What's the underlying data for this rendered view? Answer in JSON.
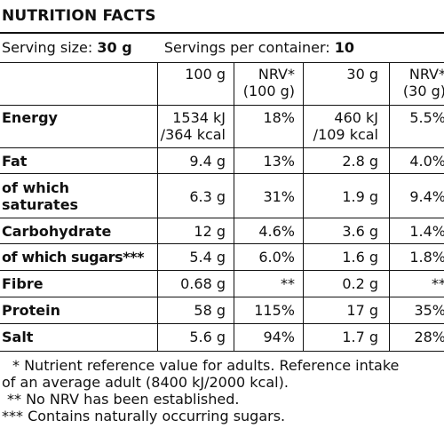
{
  "title": "NUTRITION FACTS",
  "serving": {
    "size_label": "Serving size:",
    "size_value": "30 g",
    "per_container_label": "Servings per container:",
    "per_container_value": "10"
  },
  "columns": {
    "per100": "100 g",
    "nrv100_line1": "NRV*",
    "nrv100_line2": "(100 g)",
    "per30": "30 g",
    "nrv30_line1": "NRV*",
    "nrv30_line2": "(30 g)"
  },
  "rows": [
    {
      "label_line1": "Energy",
      "label_line2": "",
      "v100_line1": "1534 kJ",
      "v100_line2": "/364 kcal",
      "nrv100": "18%",
      "v30_line1": "460 kJ",
      "v30_line2": "/109 kcal",
      "nrv30": "5.5%"
    },
    {
      "label_line1": "Fat",
      "label_line2": "",
      "v100_line1": "9.4 g",
      "v100_line2": "",
      "nrv100": "13%",
      "v30_line1": "2.8 g",
      "v30_line2": "",
      "nrv30": "4.0%"
    },
    {
      "label_line1": "of which",
      "label_line2": "saturates",
      "v100_line1": "6.3 g",
      "v100_line2": "",
      "nrv100": "31%",
      "v30_line1": "1.9 g",
      "v30_line2": "",
      "nrv30": "9.4%"
    },
    {
      "label_line1": "Carbohydrate",
      "label_line2": "",
      "v100_line1": "12 g",
      "v100_line2": "",
      "nrv100": "4.6%",
      "v30_line1": "3.6 g",
      "v30_line2": "",
      "nrv30": "1.4%"
    },
    {
      "label_line1": "of which sugars***",
      "label_line2": "",
      "v100_line1": "5.4 g",
      "v100_line2": "",
      "nrv100": "6.0%",
      "v30_line1": "1.6 g",
      "v30_line2": "",
      "nrv30": "1.8%"
    },
    {
      "label_line1": "Fibre",
      "label_line2": "",
      "v100_line1": "0.68 g",
      "v100_line2": "",
      "nrv100": "**",
      "v30_line1": "0.2 g",
      "v30_line2": "",
      "nrv30": "**"
    },
    {
      "label_line1": "Protein",
      "label_line2": "",
      "v100_line1": "58 g",
      "v100_line2": "",
      "nrv100": "115%",
      "v30_line1": "17 g",
      "v30_line2": "",
      "nrv30": "35%"
    },
    {
      "label_line1": "Salt",
      "label_line2": "",
      "v100_line1": "5.6 g",
      "v100_line2": "",
      "nrv100": "94%",
      "v30_line1": "1.7 g",
      "v30_line2": "",
      "nrv30": "28%"
    }
  ],
  "footnotes": {
    "note1_line1": "* Nutrient reference value for adults. Reference intake",
    "note1_line2": "of an average adult (8400 kJ/2000 kcal).",
    "note2": "** No NRV has been established.",
    "note3": "*** Contains naturally occurring sugars."
  }
}
